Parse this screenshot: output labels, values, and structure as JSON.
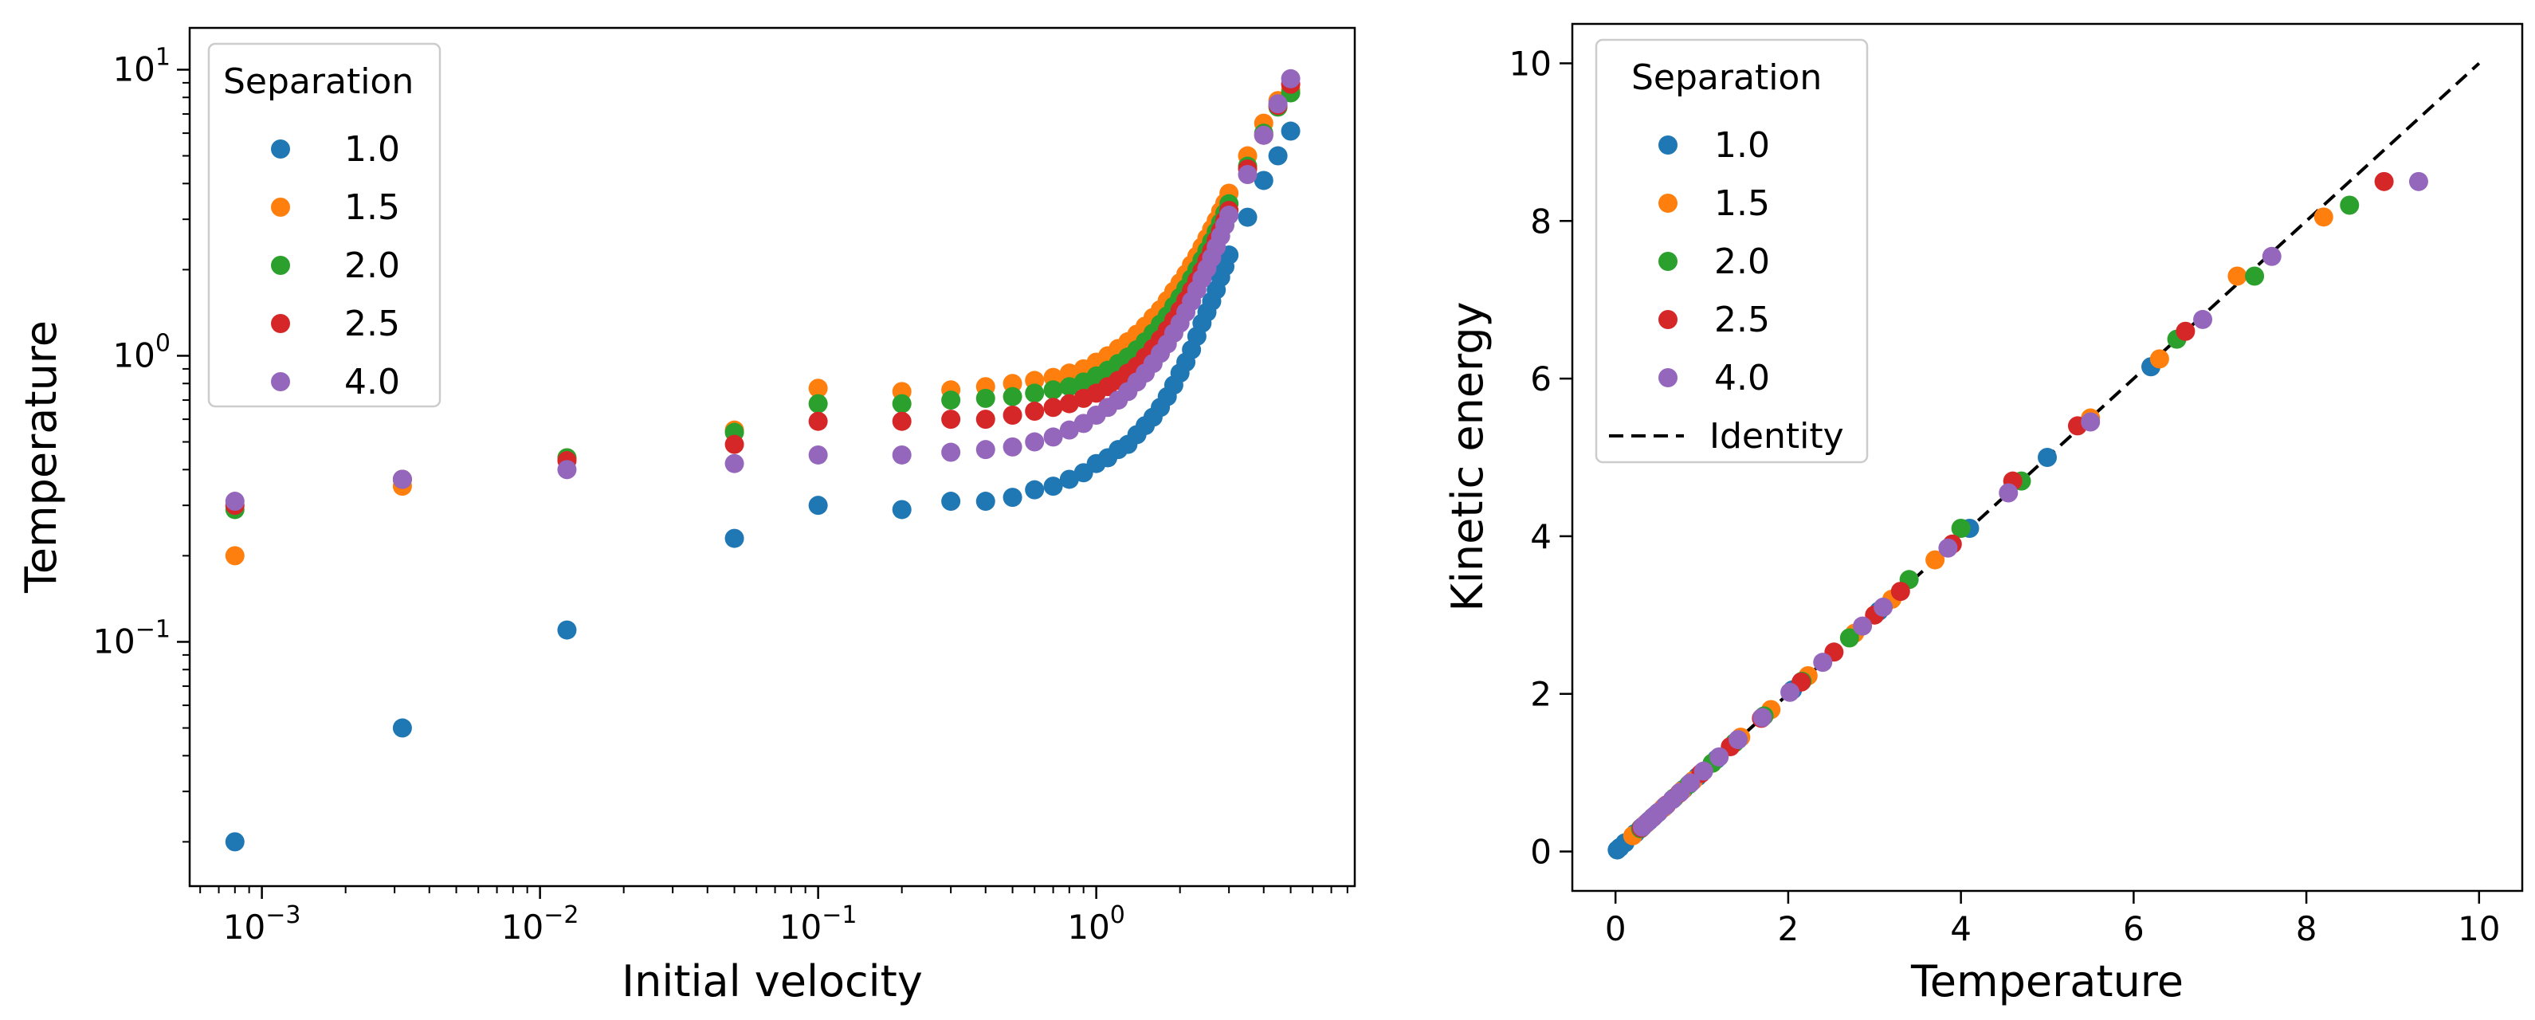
{
  "colors": {
    "1.0": "#1f77b4",
    "1.5": "#ff7f0e",
    "2.0": "#2ca02c",
    "2.5": "#d62728",
    "4.0": "#9467bd"
  },
  "chart_data": [
    {
      "type": "scatter",
      "xscale": "log",
      "yscale": "log",
      "xlabel": "Initial velocity",
      "ylabel": "Temperature",
      "xlim": [
        0.00055,
        8.5
      ],
      "ylim": [
        0.014,
        14
      ],
      "xticks": [
        {
          "value": 0.001,
          "base": "10",
          "exp": "−3"
        },
        {
          "value": 0.01,
          "base": "10",
          "exp": "−2"
        },
        {
          "value": 0.1,
          "base": "10",
          "exp": "−1"
        },
        {
          "value": 1,
          "base": "10",
          "exp": "0"
        }
      ],
      "yticks": [
        {
          "value": 0.1,
          "base": "10",
          "exp": "−1"
        },
        {
          "value": 1,
          "base": "10",
          "exp": "0"
        },
        {
          "value": 10,
          "base": "10",
          "exp": "1"
        }
      ],
      "legend": {
        "title": "Separation",
        "location": "upper left",
        "entries": [
          "1.0",
          "1.5",
          "2.0",
          "2.5",
          "4.0"
        ]
      },
      "x": [
        0.0008,
        0.0032,
        0.0125,
        0.05,
        0.1,
        0.2,
        0.3,
        0.4,
        0.5,
        0.6,
        0.7,
        0.8,
        0.9,
        1.0,
        1.1,
        1.2,
        1.3,
        1.4,
        1.5,
        1.6,
        1.7,
        1.8,
        1.9,
        2.0,
        2.1,
        2.2,
        2.3,
        2.4,
        2.5,
        2.6,
        2.7,
        2.8,
        2.9,
        3.0,
        3.5,
        4.0,
        4.5,
        5.0
      ],
      "series": [
        {
          "name": "1.0",
          "values": [
            0.02,
            0.05,
            0.11,
            0.23,
            0.3,
            0.29,
            0.31,
            0.31,
            0.32,
            0.34,
            0.35,
            0.37,
            0.39,
            0.42,
            0.44,
            0.47,
            0.49,
            0.53,
            0.57,
            0.61,
            0.66,
            0.72,
            0.79,
            0.87,
            0.95,
            1.05,
            1.17,
            1.3,
            1.42,
            1.55,
            1.7,
            1.88,
            2.05,
            2.25,
            3.05,
            4.1,
            5.0,
            6.1
          ]
        },
        {
          "name": "1.5",
          "values": [
            0.2,
            0.35,
            0.44,
            0.55,
            0.77,
            0.75,
            0.76,
            0.78,
            0.8,
            0.82,
            0.84,
            0.87,
            0.9,
            0.95,
            1.0,
            1.06,
            1.12,
            1.19,
            1.27,
            1.36,
            1.45,
            1.56,
            1.68,
            1.8,
            1.93,
            2.08,
            2.23,
            2.4,
            2.58,
            2.77,
            2.97,
            3.2,
            3.42,
            3.7,
            5.0,
            6.5,
            7.8,
            8.5
          ]
        },
        {
          "name": "2.0",
          "values": [
            0.29,
            0.37,
            0.44,
            0.54,
            0.68,
            0.68,
            0.7,
            0.71,
            0.72,
            0.74,
            0.76,
            0.78,
            0.81,
            0.85,
            0.89,
            0.94,
            0.99,
            1.05,
            1.12,
            1.2,
            1.29,
            1.38,
            1.49,
            1.6,
            1.72,
            1.86,
            2.0,
            2.16,
            2.33,
            2.51,
            2.71,
            2.92,
            3.15,
            3.4,
            4.6,
            6.0,
            7.4,
            8.3
          ]
        },
        {
          "name": "2.5",
          "values": [
            0.3,
            0.37,
            0.43,
            0.49,
            0.59,
            0.59,
            0.6,
            0.6,
            0.62,
            0.64,
            0.66,
            0.68,
            0.71,
            0.74,
            0.78,
            0.82,
            0.87,
            0.92,
            0.99,
            1.06,
            1.14,
            1.23,
            1.33,
            1.44,
            1.56,
            1.69,
            1.83,
            1.98,
            2.15,
            2.33,
            2.53,
            2.74,
            2.97,
            3.22,
            4.5,
            5.9,
            7.5,
            8.9
          ]
        },
        {
          "name": "4.0",
          "values": [
            0.31,
            0.37,
            0.4,
            0.42,
            0.45,
            0.45,
            0.46,
            0.47,
            0.48,
            0.5,
            0.52,
            0.55,
            0.58,
            0.62,
            0.66,
            0.7,
            0.75,
            0.81,
            0.87,
            0.94,
            1.02,
            1.1,
            1.2,
            1.3,
            1.42,
            1.55,
            1.7,
            1.86,
            2.02,
            2.2,
            2.4,
            2.62,
            2.86,
            3.1,
            4.3,
            5.9,
            7.6,
            9.3
          ]
        }
      ]
    },
    {
      "type": "scatter",
      "xscale": "linear",
      "yscale": "linear",
      "xlabel": "Temperature",
      "ylabel": "Kinetic energy",
      "xlim": [
        -0.5,
        10.5
      ],
      "ylim": [
        -0.5,
        10.5
      ],
      "xticks": [
        0,
        2,
        4,
        6,
        8,
        10
      ],
      "yticks": [
        0,
        2,
        4,
        6,
        8,
        10
      ],
      "legend": {
        "title": "Separation",
        "location": "upper left",
        "entries": [
          "1.0",
          "1.5",
          "2.0",
          "2.5",
          "4.0"
        ],
        "line_label": "Identity"
      },
      "identity_line": {
        "x": [
          0,
          10
        ],
        "y": [
          0,
          10
        ],
        "style": "dashed",
        "label": "Identity"
      },
      "series": [
        {
          "name": "1.0",
          "x": [
            0.02,
            0.05,
            0.11,
            0.23,
            0.3,
            0.29,
            0.31,
            0.32,
            0.35,
            0.39,
            0.44,
            0.49,
            0.57,
            0.66,
            0.79,
            0.95,
            1.17,
            1.42,
            1.7,
            2.05,
            3.05,
            4.1,
            5.0,
            6.2
          ],
          "y": [
            0.02,
            0.05,
            0.11,
            0.23,
            0.3,
            0.29,
            0.31,
            0.32,
            0.35,
            0.39,
            0.44,
            0.49,
            0.57,
            0.66,
            0.79,
            0.95,
            1.17,
            1.42,
            1.7,
            2.05,
            3.05,
            4.1,
            5.0,
            6.15
          ]
        },
        {
          "name": "1.5",
          "x": [
            0.2,
            0.35,
            0.55,
            0.77,
            0.9,
            1.12,
            1.45,
            1.8,
            2.23,
            2.77,
            3.2,
            3.7,
            5.5,
            6.3,
            7.2,
            8.2
          ],
          "y": [
            0.2,
            0.35,
            0.55,
            0.77,
            0.9,
            1.12,
            1.45,
            1.8,
            2.23,
            2.77,
            3.2,
            3.7,
            5.5,
            6.25,
            7.3,
            8.05
          ]
        },
        {
          "name": "2.0",
          "x": [
            0.29,
            0.44,
            0.68,
            0.85,
            1.12,
            1.38,
            1.72,
            2.16,
            2.71,
            3.4,
            4.0,
            4.7,
            6.5,
            7.4,
            8.5
          ],
          "y": [
            0.29,
            0.44,
            0.68,
            0.85,
            1.12,
            1.38,
            1.72,
            2.16,
            2.71,
            3.45,
            4.1,
            4.7,
            6.5,
            7.3,
            8.2
          ]
        },
        {
          "name": "2.5",
          "x": [
            0.3,
            0.43,
            0.59,
            0.74,
            0.99,
            1.33,
            1.69,
            2.15,
            2.53,
            3.0,
            3.3,
            3.9,
            4.6,
            5.35,
            6.6,
            8.9
          ],
          "y": [
            0.3,
            0.43,
            0.59,
            0.74,
            0.99,
            1.33,
            1.69,
            2.15,
            2.53,
            3.0,
            3.3,
            3.9,
            4.7,
            5.4,
            6.6,
            8.5
          ]
        },
        {
          "name": "4.0",
          "x": [
            0.31,
            0.37,
            0.42,
            0.46,
            0.5,
            0.58,
            0.66,
            0.75,
            0.87,
            1.02,
            1.2,
            1.42,
            1.7,
            2.02,
            2.4,
            2.86,
            3.1,
            3.85,
            4.55,
            5.5,
            6.8,
            7.6,
            9.3
          ],
          "y": [
            0.31,
            0.37,
            0.42,
            0.46,
            0.5,
            0.58,
            0.66,
            0.75,
            0.87,
            1.02,
            1.2,
            1.42,
            1.7,
            2.02,
            2.4,
            2.86,
            3.1,
            3.85,
            4.55,
            5.45,
            6.75,
            7.55,
            8.5
          ]
        }
      ]
    }
  ]
}
